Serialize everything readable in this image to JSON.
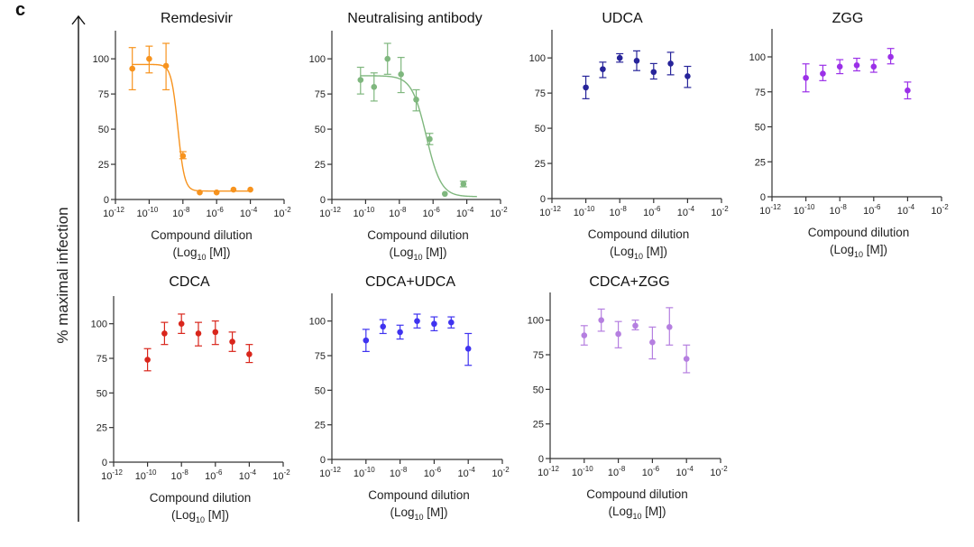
{
  "figure": {
    "panel_label": "c",
    "shared_ylabel": "% maximal infection"
  },
  "chart_data": [
    {
      "type": "scatter",
      "title": "Remdesivir",
      "color": "#F7931E",
      "xlabel": "Compound dilution",
      "xlabel_unit": "(Log10 [M])",
      "xlabel_unit_parts": [
        "(Log",
        "10",
        " [M])"
      ],
      "xscale": "log10",
      "xlim_log10": [
        -12,
        -2
      ],
      "xticks_log10": [
        -12,
        -10,
        -8,
        -6,
        -4,
        -2
      ],
      "ylim": [
        0,
        120
      ],
      "yticks": [
        0,
        25,
        50,
        75,
        100
      ],
      "grid": false,
      "points": [
        {
          "log10_x": -11,
          "y": 93,
          "err_low": 78,
          "err_high": 108
        },
        {
          "log10_x": -10,
          "y": 100,
          "err_low": 90,
          "err_high": 109
        },
        {
          "log10_x": -9,
          "y": 95,
          "err_low": 78,
          "err_high": 111
        },
        {
          "log10_x": -8,
          "y": 31,
          "err_low": 29,
          "err_high": 34
        },
        {
          "log10_x": -7,
          "y": 5,
          "err_low": 5,
          "err_high": 5
        },
        {
          "log10_x": -6,
          "y": 5,
          "err_low": 5,
          "err_high": 5
        },
        {
          "log10_x": -5,
          "y": 7,
          "err_low": 7,
          "err_high": 7
        },
        {
          "log10_x": -4,
          "y": 7,
          "err_low": 7,
          "err_high": 7
        }
      ],
      "fit": {
        "model": "4PL",
        "top": 96,
        "bottom": 6,
        "log10_ic50": -8.3,
        "hill": 2.2,
        "log10_x_range": [
          -11,
          -4
        ]
      }
    },
    {
      "type": "scatter",
      "title": "Neutralising antibody",
      "color": "#7FB77E",
      "xlabel": "Compound dilution",
      "xlabel_unit": "(Log10 [M])",
      "xlabel_unit_parts": [
        "(Log",
        "10",
        " [M])"
      ],
      "xscale": "log10",
      "xlim_log10": [
        -12,
        -2
      ],
      "xticks_log10": [
        -12,
        -10,
        -8,
        -6,
        -4,
        -2
      ],
      "ylim": [
        0,
        120
      ],
      "yticks": [
        0,
        25,
        50,
        75,
        100
      ],
      "grid": false,
      "points": [
        {
          "log10_x": -10.3,
          "y": 85,
          "err_low": 75,
          "err_high": 94
        },
        {
          "log10_x": -9.5,
          "y": 80,
          "err_low": 70,
          "err_high": 90
        },
        {
          "log10_x": -8.7,
          "y": 100,
          "err_low": 89,
          "err_high": 111
        },
        {
          "log10_x": -7.9,
          "y": 89,
          "err_low": 76,
          "err_high": 101
        },
        {
          "log10_x": -7.0,
          "y": 71,
          "err_low": 63,
          "err_high": 78
        },
        {
          "log10_x": -6.2,
          "y": 43,
          "err_low": 39,
          "err_high": 47
        },
        {
          "log10_x": -5.3,
          "y": 4,
          "err_low": 4,
          "err_high": 4
        },
        {
          "log10_x": -4.2,
          "y": 11,
          "err_low": 9,
          "err_high": 13
        }
      ],
      "fit": {
        "model": "4PL",
        "top": 88,
        "bottom": 2,
        "log10_ic50": -6.4,
        "hill": 1.0,
        "log10_x_range": [
          -10.3,
          -3.4
        ]
      }
    },
    {
      "type": "scatter",
      "title": "UDCA",
      "color": "#27249A",
      "xlabel": "Compound dilution",
      "xlabel_unit": "(Log10 [M])",
      "xlabel_unit_parts": [
        "(Log",
        "10",
        " [M])"
      ],
      "xscale": "log10",
      "xlim_log10": [
        -12,
        -2
      ],
      "xticks_log10": [
        -12,
        -10,
        -8,
        -6,
        -4,
        -2
      ],
      "ylim": [
        0,
        120
      ],
      "yticks": [
        0,
        25,
        50,
        75,
        100
      ],
      "grid": false,
      "points": [
        {
          "log10_x": -10,
          "y": 79,
          "err_low": 71,
          "err_high": 87
        },
        {
          "log10_x": -9,
          "y": 92,
          "err_low": 86,
          "err_high": 97
        },
        {
          "log10_x": -8,
          "y": 100,
          "err_low": 97,
          "err_high": 103
        },
        {
          "log10_x": -7,
          "y": 98,
          "err_low": 91,
          "err_high": 105
        },
        {
          "log10_x": -6,
          "y": 90,
          "err_low": 85,
          "err_high": 96
        },
        {
          "log10_x": -5,
          "y": 96,
          "err_low": 88,
          "err_high": 104
        },
        {
          "log10_x": -4,
          "y": 87,
          "err_low": 79,
          "err_high": 94
        }
      ]
    },
    {
      "type": "scatter",
      "title": "ZGG",
      "color": "#9B30E8",
      "xlabel": "Compound dilution",
      "xlabel_unit": "(Log10 [M])",
      "xlabel_unit_parts": [
        "(Log",
        "10",
        " [M])"
      ],
      "xscale": "log10",
      "xlim_log10": [
        -12,
        -2
      ],
      "xticks_log10": [
        -12,
        -10,
        -8,
        -6,
        -4,
        -2
      ],
      "ylim": [
        0,
        120
      ],
      "yticks": [
        0,
        25,
        50,
        75,
        100
      ],
      "grid": false,
      "points": [
        {
          "log10_x": -10,
          "y": 85,
          "err_low": 75,
          "err_high": 95
        },
        {
          "log10_x": -9,
          "y": 88,
          "err_low": 83,
          "err_high": 94
        },
        {
          "log10_x": -8,
          "y": 93,
          "err_low": 88,
          "err_high": 98
        },
        {
          "log10_x": -7,
          "y": 94,
          "err_low": 90,
          "err_high": 99
        },
        {
          "log10_x": -6,
          "y": 93,
          "err_low": 89,
          "err_high": 98
        },
        {
          "log10_x": -5,
          "y": 100,
          "err_low": 95,
          "err_high": 106
        },
        {
          "log10_x": -4,
          "y": 76,
          "err_low": 70,
          "err_high": 82
        }
      ]
    },
    {
      "type": "scatter",
      "title": "CDCA",
      "color": "#D9261C",
      "xlabel": "Compound dilution",
      "xlabel_unit": "(Log10 [M])",
      "xlabel_unit_parts": [
        "(Log",
        "10",
        " [M])"
      ],
      "xscale": "log10",
      "xlim_log10": [
        -12,
        -2
      ],
      "xticks_log10": [
        -12,
        -10,
        -8,
        -6,
        -4,
        -2
      ],
      "ylim": [
        0,
        120
      ],
      "yticks": [
        0,
        25,
        50,
        75,
        100
      ],
      "grid": false,
      "points": [
        {
          "log10_x": -10,
          "y": 74,
          "err_low": 66,
          "err_high": 82
        },
        {
          "log10_x": -9,
          "y": 93,
          "err_low": 85,
          "err_high": 101
        },
        {
          "log10_x": -8,
          "y": 100,
          "err_low": 93,
          "err_high": 107
        },
        {
          "log10_x": -7,
          "y": 93,
          "err_low": 84,
          "err_high": 101
        },
        {
          "log10_x": -6,
          "y": 94,
          "err_low": 85,
          "err_high": 102
        },
        {
          "log10_x": -5,
          "y": 87,
          "err_low": 80,
          "err_high": 94
        },
        {
          "log10_x": -4,
          "y": 78,
          "err_low": 72,
          "err_high": 85
        }
      ]
    },
    {
      "type": "scatter",
      "title": "CDCA+UDCA",
      "color": "#3F33F0",
      "xlabel": "Compound dilution",
      "xlabel_unit": "(Log10 [M])",
      "xlabel_unit_parts": [
        "(Log",
        "10",
        " [M])"
      ],
      "xscale": "log10",
      "xlim_log10": [
        -12,
        -2
      ],
      "xticks_log10": [
        -12,
        -10,
        -8,
        -6,
        -4,
        -2
      ],
      "ylim": [
        0,
        120
      ],
      "yticks": [
        0,
        25,
        50,
        75,
        100
      ],
      "grid": false,
      "points": [
        {
          "log10_x": -10,
          "y": 86,
          "err_low": 78,
          "err_high": 94
        },
        {
          "log10_x": -9,
          "y": 96,
          "err_low": 91,
          "err_high": 101
        },
        {
          "log10_x": -8,
          "y": 92,
          "err_low": 87,
          "err_high": 97
        },
        {
          "log10_x": -7,
          "y": 100,
          "err_low": 95,
          "err_high": 105
        },
        {
          "log10_x": -6,
          "y": 98,
          "err_low": 93,
          "err_high": 103
        },
        {
          "log10_x": -5,
          "y": 99,
          "err_low": 95,
          "err_high": 103
        },
        {
          "log10_x": -4,
          "y": 80,
          "err_low": 68,
          "err_high": 91
        }
      ]
    },
    {
      "type": "scatter",
      "title": "CDCA+ZGG",
      "color": "#B57FE0",
      "xlabel": "Compound dilution",
      "xlabel_unit": "(Log10 [M])",
      "xlabel_unit_parts": [
        "(Log",
        "10",
        " [M])"
      ],
      "xscale": "log10",
      "xlim_log10": [
        -12,
        -2
      ],
      "xticks_log10": [
        -12,
        -10,
        -8,
        -6,
        -4,
        -2
      ],
      "ylim": [
        0,
        120
      ],
      "yticks": [
        0,
        25,
        50,
        75,
        100
      ],
      "grid": false,
      "points": [
        {
          "log10_x": -10,
          "y": 89,
          "err_low": 82,
          "err_high": 96
        },
        {
          "log10_x": -9,
          "y": 100,
          "err_low": 92,
          "err_high": 108
        },
        {
          "log10_x": -8,
          "y": 90,
          "err_low": 80,
          "err_high": 99
        },
        {
          "log10_x": -7,
          "y": 96,
          "err_low": 93,
          "err_high": 100
        },
        {
          "log10_x": -6,
          "y": 84,
          "err_low": 72,
          "err_high": 95
        },
        {
          "log10_x": -5,
          "y": 95,
          "err_low": 82,
          "err_high": 109
        },
        {
          "log10_x": -4,
          "y": 72,
          "err_low": 62,
          "err_high": 82
        }
      ]
    }
  ]
}
